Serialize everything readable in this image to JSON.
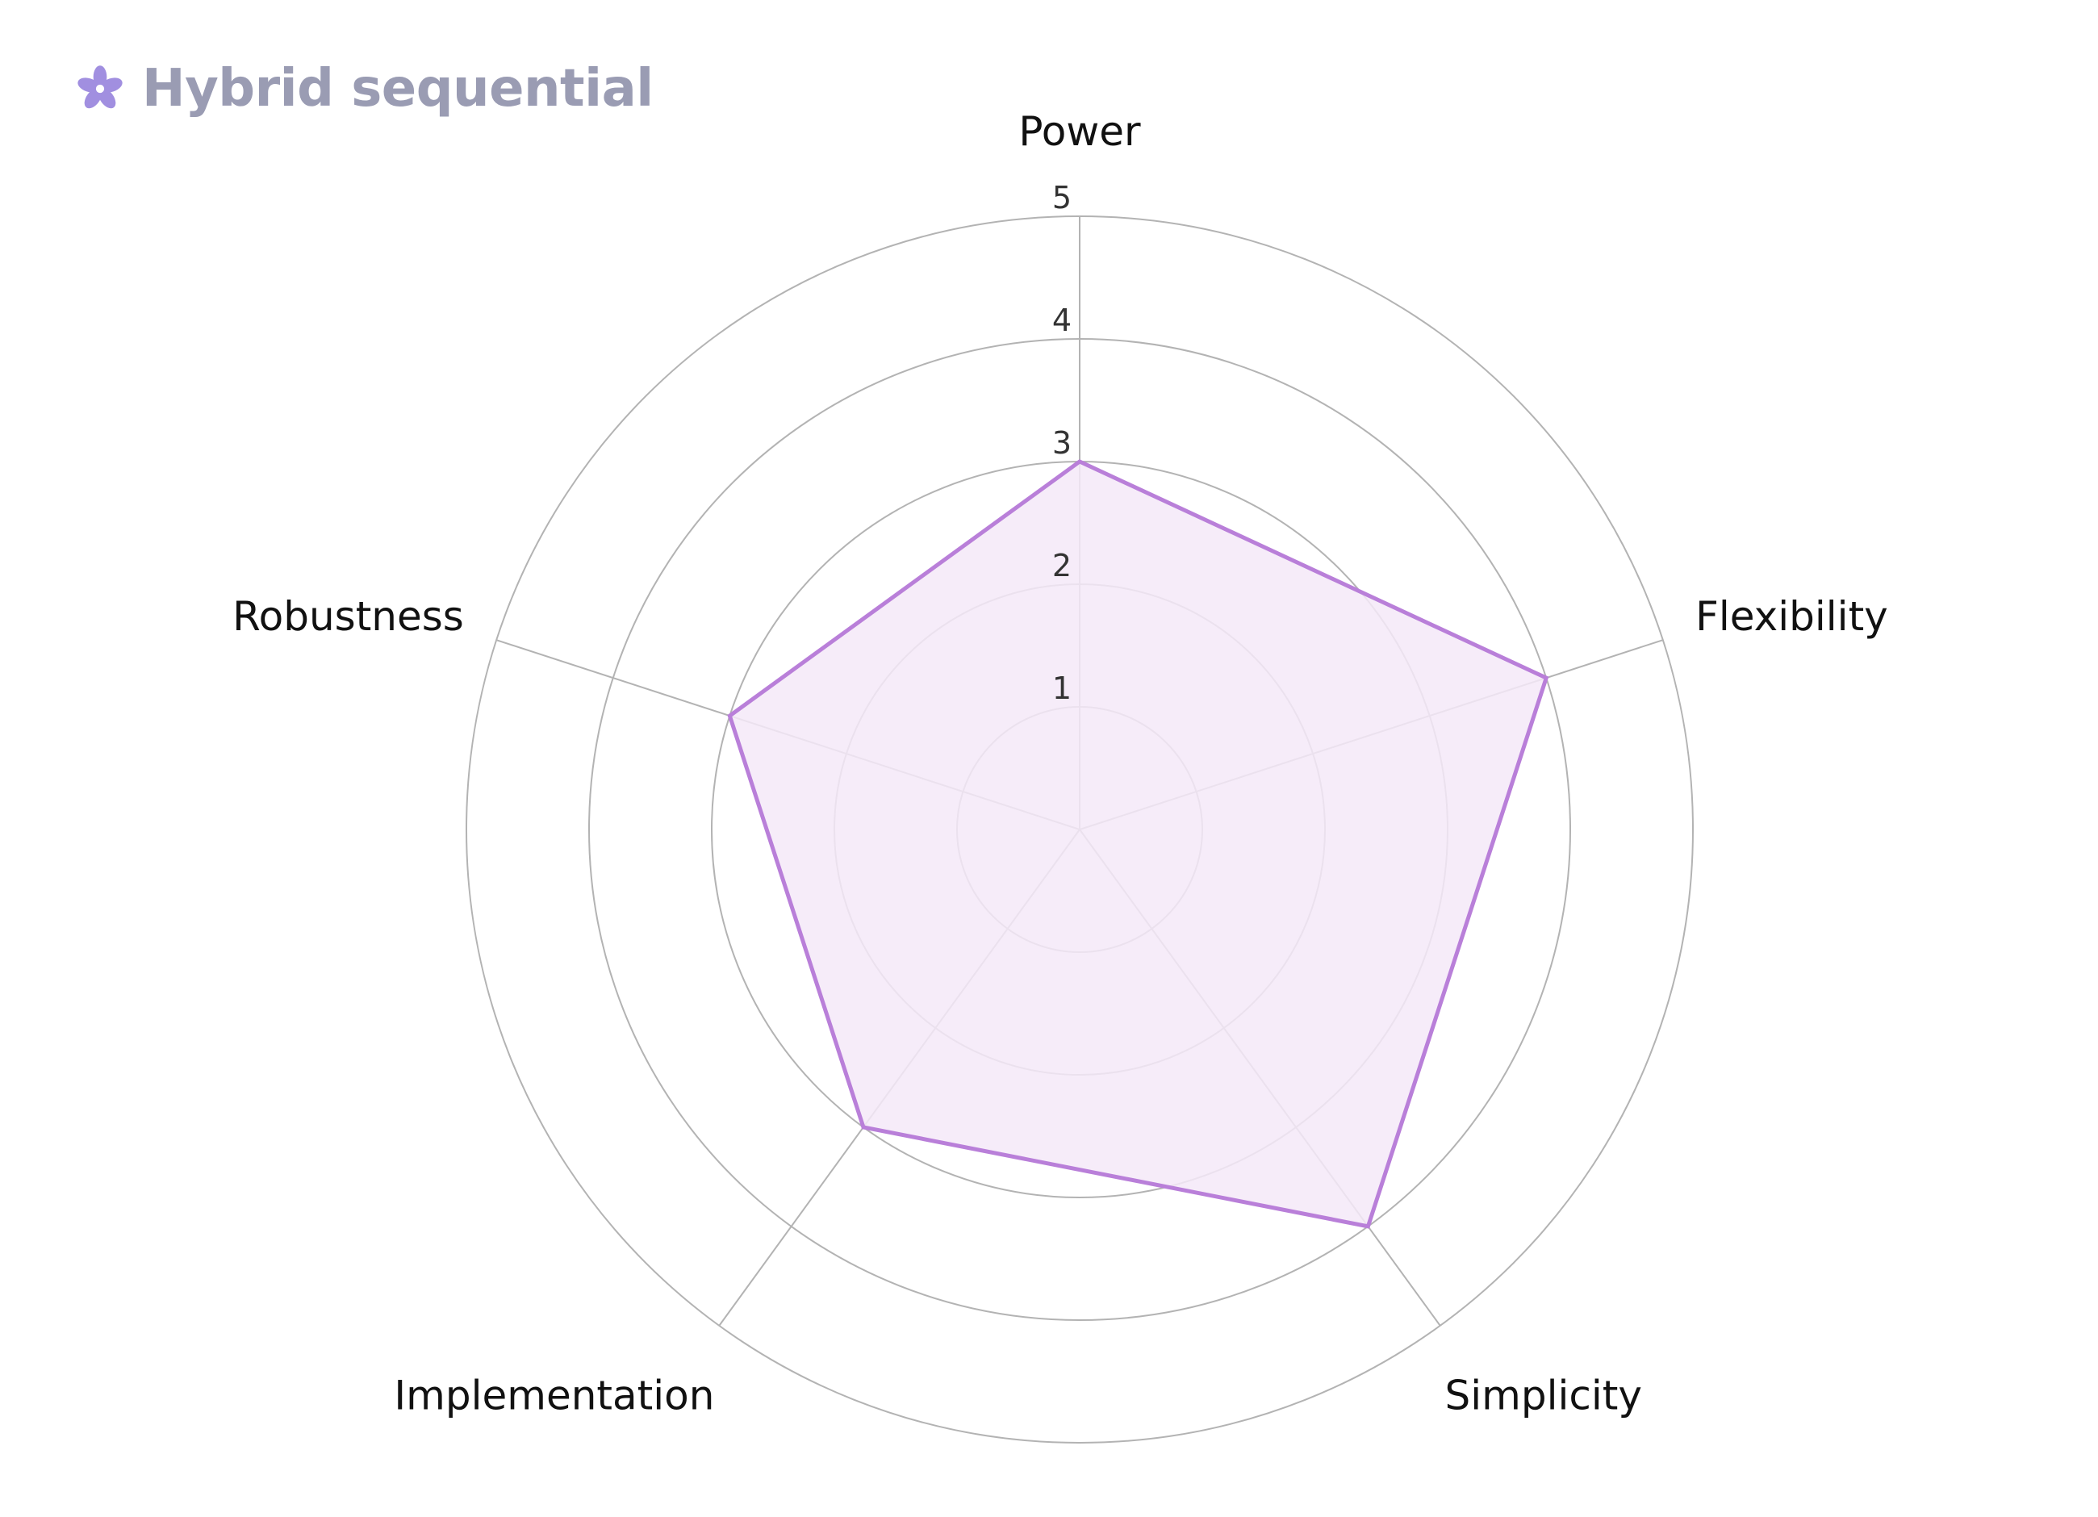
{
  "header": {
    "title": "Hybrid sequential",
    "icon": "cherry-blossom-icon",
    "icon_color": "#a18fe0",
    "title_color": "#9a9cb3"
  },
  "chart_data": {
    "type": "radar",
    "title": "Hybrid sequential",
    "axes": [
      "Power",
      "Flexibility",
      "Simplicity",
      "Implementation",
      "Robustness"
    ],
    "values": [
      3,
      4,
      4,
      3,
      3
    ],
    "rlim": [
      0,
      5
    ],
    "ticks": [
      "1",
      "2",
      "3",
      "4",
      "5"
    ],
    "grid": true,
    "series_color": "#b97fd9",
    "fill_color": "#f4e9f8",
    "grid_color": "#b3b3b3"
  }
}
